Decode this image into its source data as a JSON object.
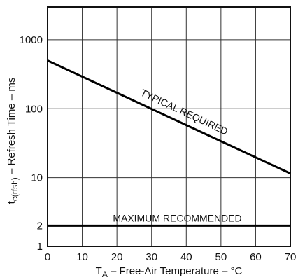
{
  "chart_data": {
    "type": "line",
    "title": "",
    "xlabel": {
      "symbol": "T",
      "subscript": "A",
      "text": " – Free-Air Temperature – °C"
    },
    "ylabel": {
      "symbol": "t",
      "subscript": "c(rfsh)",
      "text": " – Refresh Time – ms"
    },
    "x_scale": "linear",
    "y_scale": "log",
    "xlim": [
      0,
      70
    ],
    "ylim": [
      1,
      3000
    ],
    "x_ticks": [
      0,
      10,
      20,
      30,
      40,
      50,
      60,
      70
    ],
    "x_tick_labels": [
      "0",
      "10",
      "20",
      "30",
      "40",
      "50",
      "60",
      "70"
    ],
    "y_ticks": [
      1,
      2,
      10,
      100,
      1000
    ],
    "y_tick_labels": [
      "1",
      "2",
      "10",
      "100",
      "1000"
    ],
    "grid": true,
    "series": [
      {
        "name": "TYPICAL REQUIRED",
        "x": [
          0,
          70
        ],
        "y": [
          500,
          11.5
        ],
        "label_angle_deg": 25
      },
      {
        "name": "MAXIMUM RECOMMENDED",
        "x": [
          0,
          70
        ],
        "y": [
          2,
          2
        ],
        "label_angle_deg": 0
      }
    ]
  }
}
